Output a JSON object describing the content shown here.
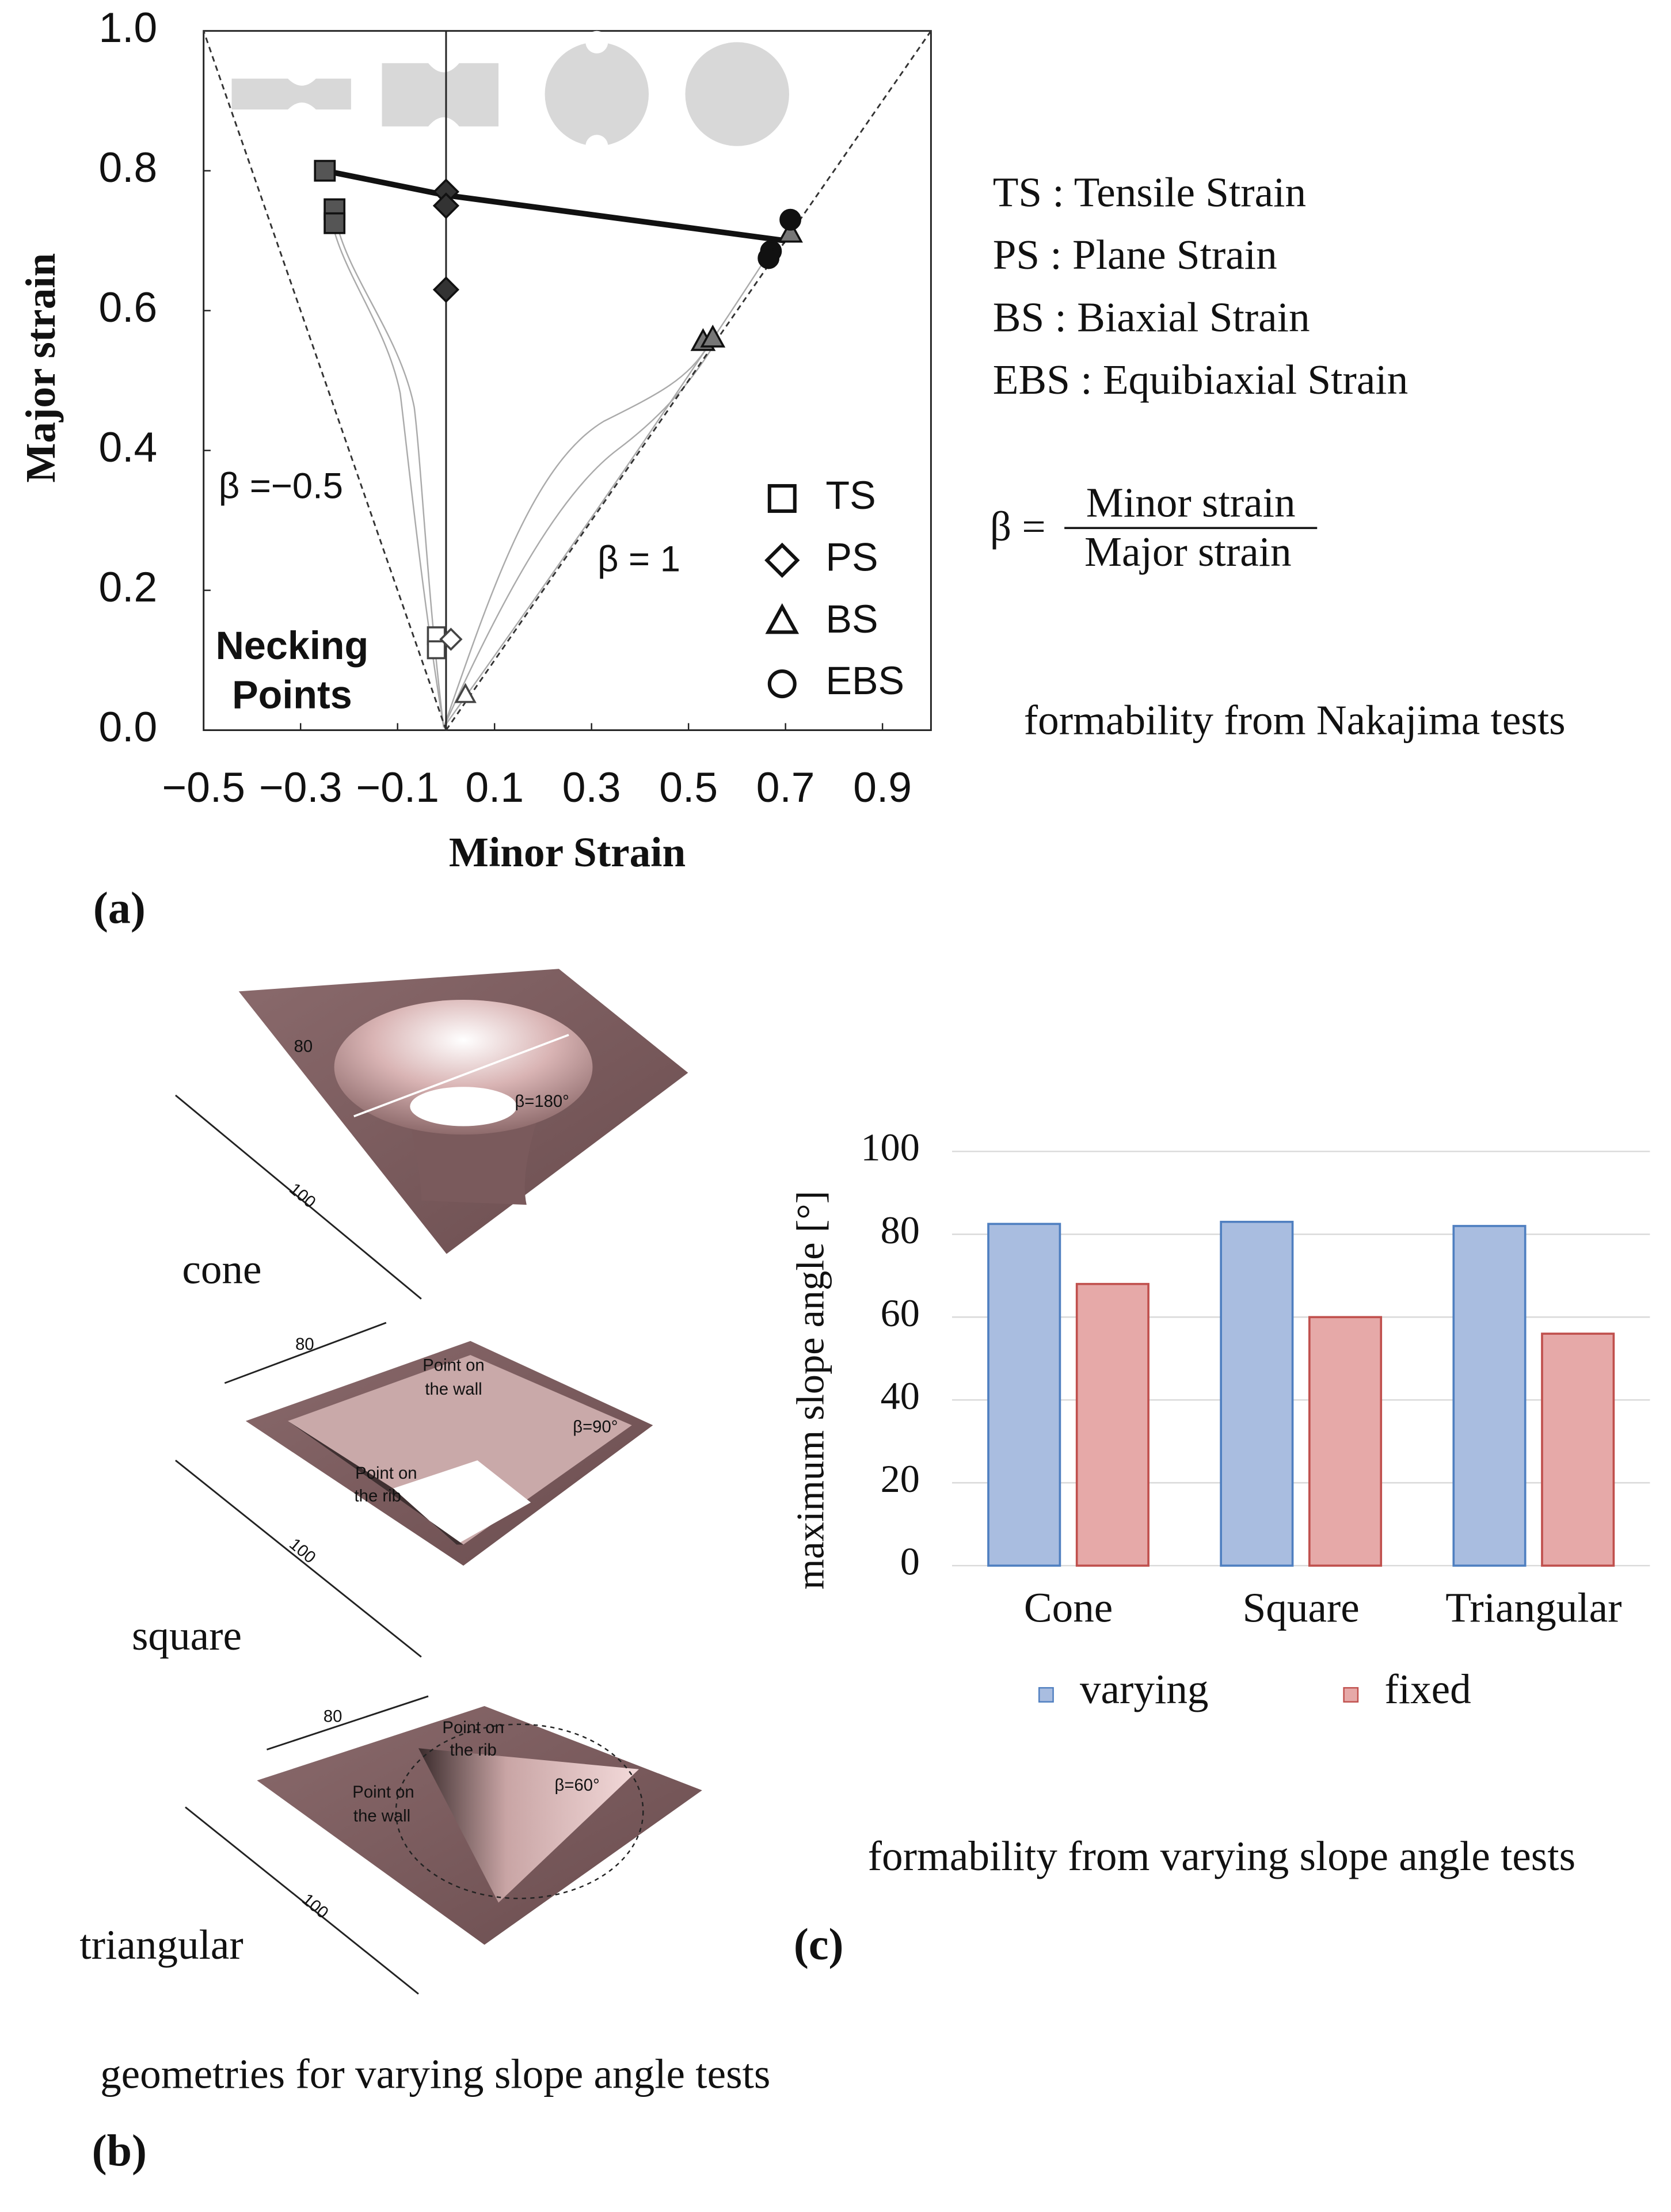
{
  "chart_data": [
    {
      "type": "scatter",
      "x_label": "Minor Strain",
      "y_label": "Major strain",
      "xlim": [
        -0.5,
        1.0
      ],
      "ylim": [
        0,
        1.0
      ],
      "xticks": [
        {
          "value": -0.5,
          "label": "−0.5"
        },
        {
          "value": -0.3,
          "label": "−0.3"
        },
        {
          "value": -0.1,
          "label": "−0.1"
        },
        0.1,
        0.3,
        0.5,
        0.7,
        0.9
      ],
      "yticks": [
        {
          "value": 0,
          "label": "0.0"
        },
        0.2,
        0.4,
        0.6,
        0.8,
        {
          "value": 1,
          "label": "1.0"
        }
      ],
      "series": [
        {
          "name": "TS",
          "marker": "square",
          "color": "#555555",
          "x": [
            -0.25,
            -0.23,
            -0.23
          ],
          "values": [
            0.8,
            0.745,
            0.725
          ],
          "necking_x": [
            -0.02,
            -0.02
          ],
          "necking_values": [
            0.135,
            0.115
          ]
        },
        {
          "name": "PS",
          "marker": "diamond",
          "color": "#333333",
          "x": [
            0.0,
            0.0,
            0.0
          ],
          "values": [
            0.77,
            0.75,
            0.63
          ],
          "necking_x": [
            0.01
          ],
          "necking_values": [
            0.13
          ]
        },
        {
          "name": "BS",
          "marker": "triangle",
          "color": "#777777",
          "x": [
            0.53,
            0.55,
            0.71
          ],
          "values": [
            0.555,
            0.56,
            0.71
          ],
          "necking_x": [
            0.04
          ],
          "necking_values": [
            0.05
          ]
        },
        {
          "name": "EBS",
          "marker": "circle",
          "color": "#111111",
          "x": [
            0.71,
            0.67,
            0.665
          ],
          "values": [
            0.73,
            0.685,
            0.675
          ],
          "necking_x": [],
          "necking_values": []
        }
      ],
      "flc": {
        "x": [
          -0.25,
          0.0,
          0.7
        ],
        "values": [
          0.8,
          0.765,
          0.7
        ]
      },
      "reference_lines": [
        {
          "label": "β =−0.5",
          "beta": -0.5
        },
        {
          "label": "β = 1",
          "beta": 1
        }
      ],
      "annotations": [
        "Necking",
        "Points"
      ]
    },
    {
      "type": "bar",
      "y_label": "maximum slope angle [°]",
      "categories": [
        "Cone",
        "Square",
        "Triangular"
      ],
      "series": [
        {
          "name": "varying",
          "color": "#a9bde0",
          "edge": "#4f7fc0",
          "values": [
            82.5,
            83,
            82
          ]
        },
        {
          "name": "fixed",
          "color": "#e6a9a8",
          "edge": "#c0504d",
          "values": [
            68,
            60,
            56
          ]
        }
      ],
      "ylim": [
        0,
        100
      ],
      "yticks": [
        0,
        20,
        40,
        60,
        80,
        100
      ],
      "grid": true
    }
  ],
  "panel_a": {
    "definitions": [
      "TS : Tensile Strain",
      "PS : Plane Strain",
      "BS : Biaxial Strain",
      "EBS : Equibiaxial Strain"
    ],
    "formula": {
      "lhs": "β =",
      "numerator": "Minor strain",
      "denominator": "Major strain"
    },
    "caption": "formability from Nakajima tests",
    "label": "(a)"
  },
  "panel_b": {
    "geometries": [
      {
        "name": "cone",
        "texts": [
          "80",
          "100",
          "β=180°"
        ]
      },
      {
        "name": "square",
        "texts": [
          "80",
          "100",
          "Point on",
          "the wall",
          "Point on",
          "the rib",
          "β=90°"
        ]
      },
      {
        "name": "triangular",
        "texts": [
          "80",
          "100",
          "Point on",
          "the rib",
          "Point on",
          "the wall",
          "β=60°"
        ]
      }
    ],
    "caption": "geometries for varying slope angle tests",
    "label": "(b)"
  },
  "panel_c": {
    "caption": "formability from varying slope angle tests",
    "label": "(c)"
  }
}
